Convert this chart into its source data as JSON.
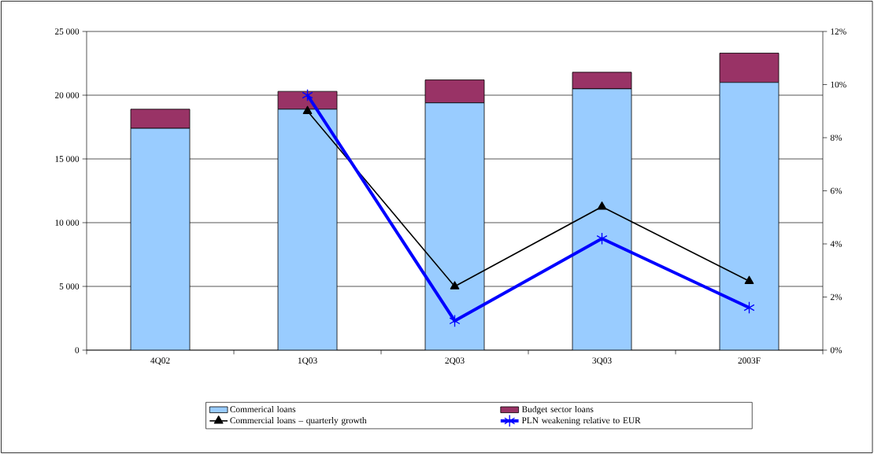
{
  "chart_data": {
    "type": "bar",
    "stacked": true,
    "grid": "y",
    "legend": "bottom",
    "categories": [
      "4Q02",
      "1Q03",
      "2Q03",
      "3Q03",
      "2003F"
    ],
    "ylim": [
      0,
      25000
    ],
    "yticks": [
      {
        "value": 0,
        "label": "0"
      },
      {
        "value": 5000,
        "label": "5 000"
      },
      {
        "value": 10000,
        "label": "10 000"
      },
      {
        "value": 15000,
        "label": "15 000"
      },
      {
        "value": 20000,
        "label": "20 000"
      },
      {
        "value": 25000,
        "label": "25 000"
      }
    ],
    "y2lim": [
      0,
      12
    ],
    "y2ticks": [
      {
        "value": 0,
        "label": "0%"
      },
      {
        "value": 2,
        "label": "2%"
      },
      {
        "value": 4,
        "label": "4%"
      },
      {
        "value": 6,
        "label": "6%"
      },
      {
        "value": 8,
        "label": "8%"
      },
      {
        "value": 10,
        "label": "10%"
      },
      {
        "value": 12,
        "label": "12%"
      }
    ],
    "series": [
      {
        "name": "Commerical loans",
        "color": "#99ccff",
        "values": [
          17400,
          18900,
          19400,
          20500,
          21000
        ]
      },
      {
        "name": "Budget sector loans",
        "color": "#993366",
        "values": [
          1500,
          1400,
          1800,
          1300,
          2300
        ]
      },
      {
        "name": "Commercial loans – quarterly growth",
        "type": "line",
        "axis": "y2",
        "marker": "triangle",
        "color": "#000000",
        "values": [
          null,
          9.0,
          2.4,
          5.4,
          2.6
        ]
      },
      {
        "name": "PLN weakening relative to EUR",
        "type": "line",
        "axis": "y2",
        "marker": "cross",
        "color": "#0000ff",
        "values": [
          null,
          9.6,
          1.1,
          4.2,
          1.6
        ]
      }
    ]
  }
}
